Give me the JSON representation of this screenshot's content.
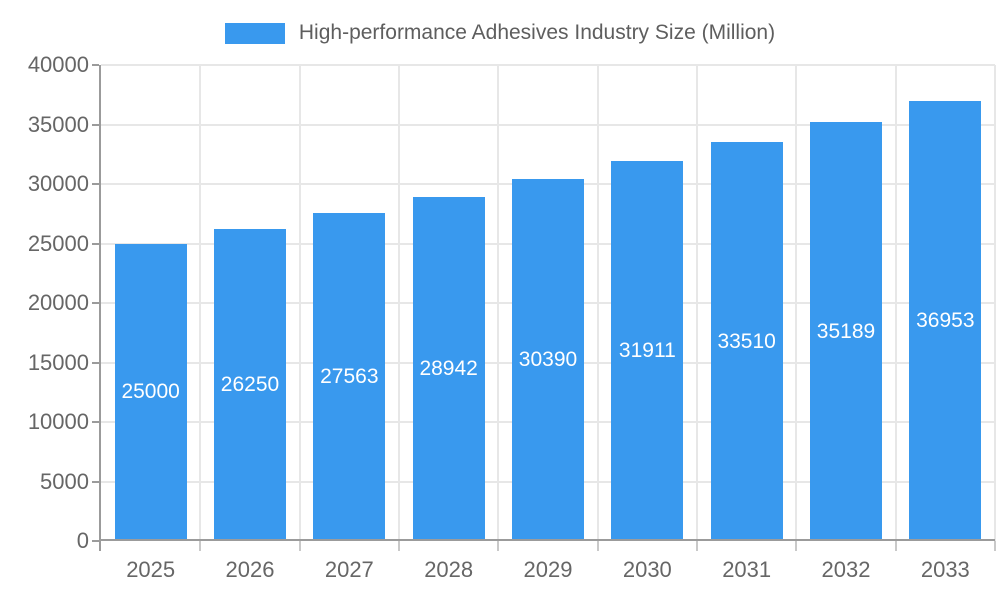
{
  "chart_data": {
    "type": "bar",
    "title": "High-performance Adhesives Industry Size (Million)",
    "categories": [
      "2025",
      "2026",
      "2027",
      "2028",
      "2029",
      "2030",
      "2031",
      "2032",
      "2033"
    ],
    "series": [
      {
        "name": "High-performance Adhesives Industry Size (Million)",
        "values": [
          25000,
          26250,
          27563,
          28942,
          30390,
          31911,
          33510,
          35189,
          36953
        ]
      }
    ],
    "value_labels": [
      "25000",
      "26250",
      "27563",
      "28942",
      "30390",
      "31911",
      "33510",
      "35189",
      "36953"
    ],
    "xlabel": "",
    "ylabel": "",
    "ylim": [
      0,
      40000
    ],
    "yticks": [
      0,
      5000,
      10000,
      15000,
      20000,
      25000,
      30000,
      35000,
      40000
    ],
    "ytick_labels": [
      "0",
      "5000",
      "10000",
      "15000",
      "20000",
      "25000",
      "30000",
      "35000",
      "40000"
    ],
    "grid": true,
    "legend_position": "top",
    "value_label_position": "center-inside-bar",
    "colors": {
      "bar": "#3999EE",
      "grid": "#E7E7E7",
      "axis": "#9B9B9B",
      "boundary_tick": "#C9C9C9",
      "tick_text": "#666666",
      "legend_text": "#5E5E5E",
      "value_text": "#FFFFFF",
      "background": "#FFFFFF"
    }
  }
}
